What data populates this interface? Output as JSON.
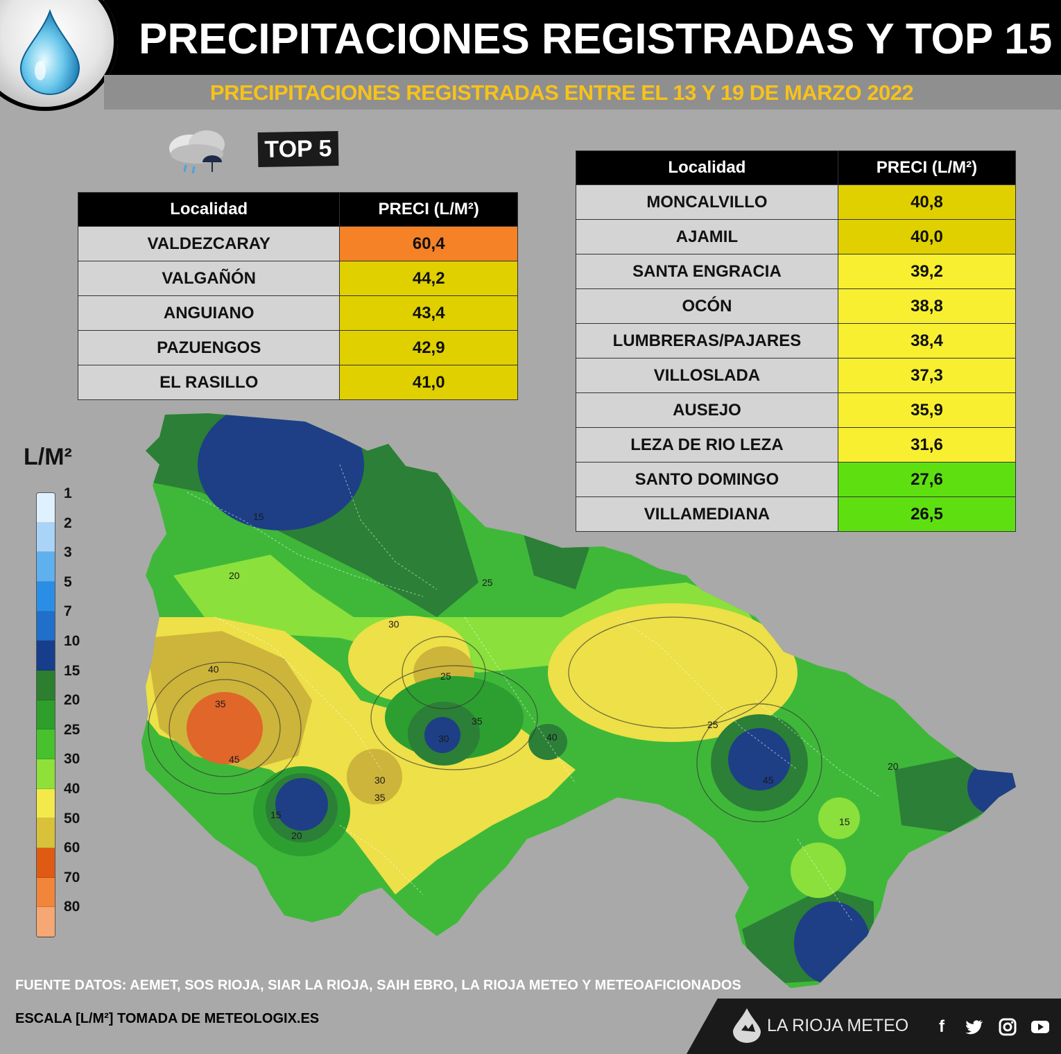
{
  "header": {
    "title": "PRECIPITACIONES REGISTRADAS Y TOP 15",
    "subtitle": "PRECIPITACIONES REGISTRADAS ENTRE EL 13 Y 19 DE MARZO 2022"
  },
  "top5": {
    "badge": "TOP 5",
    "col_locality": "Localidad",
    "col_preci": "PRECI (L/M²)",
    "rows": [
      {
        "name": "VALDEZCARAY",
        "value": "60,4",
        "color": "#f58226"
      },
      {
        "name": "VALGAÑÓN",
        "value": "44,2",
        "color": "#e0d000"
      },
      {
        "name": "ANGUIANO",
        "value": "43,4",
        "color": "#e0d000"
      },
      {
        "name": "PAZUENGOS",
        "value": "42,9",
        "color": "#e0d000"
      },
      {
        "name": "EL RASILLO",
        "value": "41,0",
        "color": "#e0d000"
      }
    ]
  },
  "top15": {
    "col_locality": "Localidad",
    "col_preci": "PRECI (L/M²)",
    "rows": [
      {
        "name": "MONCALVILLO",
        "value": "40,8",
        "color": "#e0d000"
      },
      {
        "name": "AJAMIL",
        "value": "40,0",
        "color": "#e0d000"
      },
      {
        "name": "SANTA ENGRACIA",
        "value": "39,2",
        "color": "#f8ef30"
      },
      {
        "name": "OCÓN",
        "value": "38,8",
        "color": "#f8ef30"
      },
      {
        "name": "LUMBRERAS/PAJARES",
        "value": "38,4",
        "color": "#f8ef30"
      },
      {
        "name": "VILLOSLADA",
        "value": "37,3",
        "color": "#f8ef30"
      },
      {
        "name": "AUSEJO",
        "value": "35,9",
        "color": "#f8ef30"
      },
      {
        "name": "LEZA DE RIO LEZA",
        "value": "31,6",
        "color": "#f8ef30"
      },
      {
        "name": "SANTO DOMINGO",
        "value": "27,6",
        "color": "#5ee010"
      },
      {
        "name": "VILLAMEDIANA",
        "value": "26,5",
        "color": "#5ee010"
      }
    ]
  },
  "legend": {
    "unit": "L/M²",
    "levels": [
      "1",
      "2",
      "3",
      "5",
      "7",
      "10",
      "15",
      "20",
      "25",
      "30",
      "40",
      "50",
      "60",
      "70",
      "80"
    ],
    "colors": [
      "#dff0ff",
      "#a9d4f8",
      "#5fb0ef",
      "#2b8ee6",
      "#1f6fcb",
      "#163e8c",
      "#2c7f2e",
      "#2d9f2a",
      "#48c22c",
      "#8fe13a",
      "#f4e94a",
      "#d9c13a",
      "#df5a12",
      "#f1863b",
      "#f5a874"
    ]
  },
  "map": {
    "contour_labels": [
      "15",
      "20",
      "25",
      "30",
      "35",
      "40",
      "45"
    ]
  },
  "footer": {
    "source": "FUENTE DATOS: AEMET, SOS RIOJA, SIAR LA RIOJA, SAIH EBRO, LA RIOJA METEO  Y METEOAFICIONADOS",
    "scale": "ESCALA [L/M²] TOMADA DE METEOLOGIX.ES",
    "brand": "LA RIOJA METEO",
    "social": [
      "f",
      "t",
      "ig",
      "yt"
    ]
  }
}
